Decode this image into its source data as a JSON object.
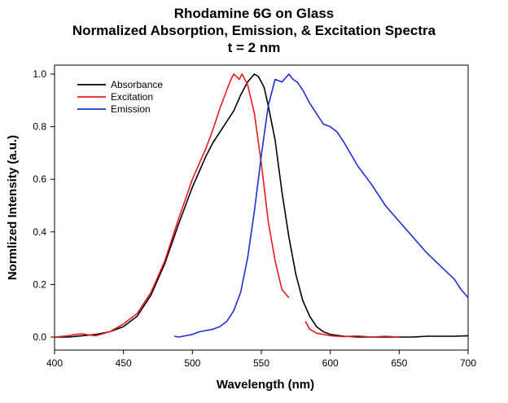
{
  "chart_data": {
    "type": "line",
    "title": "Rhodamine 6G on Glass",
    "subtitle": "Normalized Absorption, Emission, & Excitation Spectra",
    "subtitle2": "t = 2 nm",
    "xlabel": "Wavelength (nm)",
    "ylabel": "Normlized Intensity (a.u.)",
    "xlim": [
      400,
      700
    ],
    "ylim": [
      0,
      1.0
    ],
    "xticks": [
      "400",
      "450",
      "500",
      "550",
      "600",
      "650",
      "700"
    ],
    "yticks": [
      "0.0",
      "0.2",
      "0.4",
      "0.6",
      "0.8",
      "1.0"
    ],
    "grid": false,
    "legend_position": "top-left",
    "series": [
      {
        "name": "Absorbance",
        "color": "#000000",
        "x": [
          400,
          410,
          420,
          430,
          440,
          450,
          460,
          470,
          480,
          490,
          500,
          505,
          510,
          515,
          520,
          525,
          530,
          535,
          540,
          545,
          548,
          552,
          555,
          560,
          565,
          570,
          575,
          580,
          585,
          590,
          595,
          600,
          610,
          620,
          630,
          640,
          650,
          660,
          670,
          680,
          690,
          700
        ],
        "y": [
          0.0,
          0.0,
          0.005,
          0.01,
          0.02,
          0.04,
          0.08,
          0.16,
          0.28,
          0.43,
          0.57,
          0.63,
          0.69,
          0.74,
          0.78,
          0.82,
          0.86,
          0.92,
          0.97,
          1.0,
          0.99,
          0.95,
          0.88,
          0.75,
          0.55,
          0.38,
          0.24,
          0.14,
          0.08,
          0.04,
          0.02,
          0.01,
          0.003,
          0.0,
          0.0,
          0.0,
          0.0,
          0.0,
          0.003,
          0.003,
          0.003,
          0.005
        ]
      },
      {
        "name": "Excitation",
        "color": "#e8191c",
        "segments": [
          {
            "x": [
              400,
              410,
              415,
              420,
              425,
              430,
              440,
              450,
              460,
              470,
              480,
              490,
              500,
              505,
              510,
              515,
              520,
              525,
              528,
              530,
              532,
              534,
              536,
              540,
              545,
              550,
              555,
              560,
              565,
              570
            ],
            "y": [
              0.0,
              0.005,
              0.01,
              0.012,
              0.008,
              0.005,
              0.02,
              0.05,
              0.09,
              0.17,
              0.29,
              0.45,
              0.6,
              0.66,
              0.72,
              0.79,
              0.87,
              0.94,
              0.98,
              1.0,
              0.99,
              0.98,
              1.0,
              0.96,
              0.85,
              0.66,
              0.44,
              0.29,
              0.18,
              0.15
            ]
          },
          {
            "x": [
              582,
              585,
              590,
              595,
              600,
              610,
              620,
              630,
              640,
              650
            ],
            "y": [
              0.06,
              0.03,
              0.015,
              0.01,
              0.005,
              0.002,
              0.004,
              0.0,
              0.003,
              0.0
            ]
          }
        ]
      },
      {
        "name": "Emission",
        "color": "#1f2fd0",
        "x": [
          487,
          490,
          495,
          500,
          505,
          510,
          515,
          520,
          525,
          530,
          535,
          540,
          545,
          550,
          555,
          560,
          565,
          570,
          573,
          576,
          580,
          585,
          590,
          595,
          600,
          605,
          610,
          620,
          630,
          640,
          650,
          660,
          670,
          680,
          690,
          695,
          700
        ],
        "y": [
          0.003,
          0.0,
          0.005,
          0.01,
          0.02,
          0.025,
          0.03,
          0.04,
          0.06,
          0.1,
          0.17,
          0.3,
          0.48,
          0.69,
          0.88,
          0.98,
          0.97,
          1.0,
          0.98,
          0.97,
          0.94,
          0.89,
          0.85,
          0.81,
          0.8,
          0.78,
          0.74,
          0.65,
          0.58,
          0.5,
          0.44,
          0.38,
          0.32,
          0.27,
          0.22,
          0.18,
          0.15
        ]
      }
    ]
  }
}
